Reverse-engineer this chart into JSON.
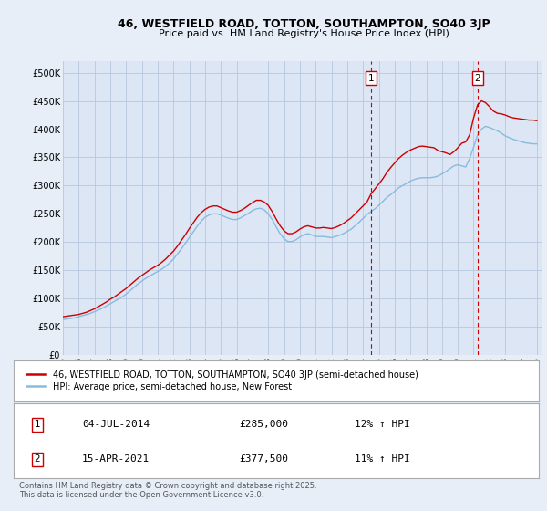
{
  "title_line1": "46, WESTFIELD ROAD, TOTTON, SOUTHAMPTON, SO40 3JP",
  "title_line2": "Price paid vs. HM Land Registry's House Price Index (HPI)",
  "xlim_start": 1995.0,
  "xlim_end": 2025.3,
  "ylim_min": 0,
  "ylim_max": 520000,
  "yticks": [
    0,
    50000,
    100000,
    150000,
    200000,
    250000,
    300000,
    350000,
    400000,
    450000,
    500000
  ],
  "ytick_labels": [
    "£0",
    "£50K",
    "£100K",
    "£150K",
    "£200K",
    "£250K",
    "£300K",
    "£350K",
    "£400K",
    "£450K",
    "£500K"
  ],
  "xtick_years": [
    1995,
    1996,
    1997,
    1998,
    1999,
    2000,
    2001,
    2002,
    2003,
    2004,
    2005,
    2006,
    2007,
    2008,
    2009,
    2010,
    2011,
    2012,
    2013,
    2014,
    2015,
    2016,
    2017,
    2018,
    2019,
    2020,
    2021,
    2022,
    2023,
    2024,
    2025
  ],
  "bg_color": "#e8eef8",
  "plot_bg_color": "#dce6f5",
  "grid_color": "#b8c8dc",
  "red_line_color": "#cc0000",
  "blue_line_color": "#88bbdd",
  "marker1_x": 2014.5,
  "marker1_label": "1",
  "marker1_price": "£285,000",
  "marker1_date": "04-JUL-2014",
  "marker1_hpi": "12% ↑ HPI",
  "marker2_x": 2021.25,
  "marker2_label": "2",
  "marker2_price": "£377,500",
  "marker2_date": "15-APR-2021",
  "marker2_hpi": "11% ↑ HPI",
  "legend_label1": "46, WESTFIELD ROAD, TOTTON, SOUTHAMPTON, SO40 3JP (semi-detached house)",
  "legend_label2": "HPI: Average price, semi-detached house, New Forest",
  "footer_text": "Contains HM Land Registry data © Crown copyright and database right 2025.\nThis data is licensed under the Open Government Licence v3.0.",
  "hpi_series_x": [
    1995.0,
    1995.25,
    1995.5,
    1995.75,
    1996.0,
    1996.25,
    1996.5,
    1996.75,
    1997.0,
    1997.25,
    1997.5,
    1997.75,
    1998.0,
    1998.25,
    1998.5,
    1998.75,
    1999.0,
    1999.25,
    1999.5,
    1999.75,
    2000.0,
    2000.25,
    2000.5,
    2000.75,
    2001.0,
    2001.25,
    2001.5,
    2001.75,
    2002.0,
    2002.25,
    2002.5,
    2002.75,
    2003.0,
    2003.25,
    2003.5,
    2003.75,
    2004.0,
    2004.25,
    2004.5,
    2004.75,
    2005.0,
    2005.25,
    2005.5,
    2005.75,
    2006.0,
    2006.25,
    2006.5,
    2006.75,
    2007.0,
    2007.25,
    2007.5,
    2007.75,
    2008.0,
    2008.25,
    2008.5,
    2008.75,
    2009.0,
    2009.25,
    2009.5,
    2009.75,
    2010.0,
    2010.25,
    2010.5,
    2010.75,
    2011.0,
    2011.25,
    2011.5,
    2011.75,
    2012.0,
    2012.25,
    2012.5,
    2012.75,
    2013.0,
    2013.25,
    2013.5,
    2013.75,
    2014.0,
    2014.25,
    2014.5,
    2014.75,
    2015.0,
    2015.25,
    2015.5,
    2015.75,
    2016.0,
    2016.25,
    2016.5,
    2016.75,
    2017.0,
    2017.25,
    2017.5,
    2017.75,
    2018.0,
    2018.25,
    2018.5,
    2018.75,
    2019.0,
    2019.25,
    2019.5,
    2019.75,
    2020.0,
    2020.25,
    2020.5,
    2020.75,
    2021.0,
    2021.25,
    2021.5,
    2021.75,
    2022.0,
    2022.25,
    2022.5,
    2022.75,
    2023.0,
    2023.25,
    2023.5,
    2023.75,
    2024.0,
    2024.25,
    2024.5,
    2024.75,
    2025.0
  ],
  "hpi_series_y": [
    63000,
    64000,
    65000,
    66000,
    68000,
    70000,
    72000,
    74000,
    77000,
    80000,
    83000,
    87000,
    91000,
    95000,
    99000,
    103000,
    108000,
    114000,
    120000,
    126000,
    131000,
    136000,
    140000,
    144000,
    148000,
    152000,
    157000,
    163000,
    170000,
    179000,
    188000,
    198000,
    208000,
    218000,
    228000,
    237000,
    244000,
    248000,
    250000,
    250000,
    248000,
    245000,
    242000,
    240000,
    240000,
    243000,
    247000,
    251000,
    256000,
    259000,
    260000,
    257000,
    250000,
    240000,
    227000,
    215000,
    206000,
    201000,
    201000,
    204000,
    209000,
    213000,
    215000,
    213000,
    210000,
    210000,
    210000,
    209000,
    208000,
    210000,
    212000,
    215000,
    219000,
    223000,
    229000,
    235000,
    242000,
    249000,
    254000,
    259000,
    265000,
    272000,
    279000,
    284000,
    290000,
    296000,
    300000,
    304000,
    308000,
    311000,
    313000,
    314000,
    314000,
    314000,
    315000,
    317000,
    321000,
    325000,
    330000,
    335000,
    337000,
    335000,
    333000,
    348000,
    368000,
    390000,
    400000,
    405000,
    403000,
    400000,
    397000,
    393000,
    388000,
    385000,
    382000,
    380000,
    378000,
    376000,
    375000,
    374000,
    374000
  ],
  "price_series_x": [
    1995.0,
    1995.25,
    1995.5,
    1995.75,
    1996.0,
    1996.25,
    1996.5,
    1996.75,
    1997.0,
    1997.25,
    1997.5,
    1997.75,
    1998.0,
    1998.25,
    1998.5,
    1998.75,
    1999.0,
    1999.25,
    1999.5,
    1999.75,
    2000.0,
    2000.25,
    2000.5,
    2000.75,
    2001.0,
    2001.25,
    2001.5,
    2001.75,
    2002.0,
    2002.25,
    2002.5,
    2002.75,
    2003.0,
    2003.25,
    2003.5,
    2003.75,
    2004.0,
    2004.25,
    2004.5,
    2004.75,
    2005.0,
    2005.25,
    2005.5,
    2005.75,
    2006.0,
    2006.25,
    2006.5,
    2006.75,
    2007.0,
    2007.25,
    2007.5,
    2007.75,
    2008.0,
    2008.25,
    2008.5,
    2008.75,
    2009.0,
    2009.25,
    2009.5,
    2009.75,
    2010.0,
    2010.25,
    2010.5,
    2010.75,
    2011.0,
    2011.25,
    2011.5,
    2011.75,
    2012.0,
    2012.25,
    2012.5,
    2012.75,
    2013.0,
    2013.25,
    2013.5,
    2013.75,
    2014.0,
    2014.25,
    2014.5,
    2014.75,
    2015.0,
    2015.25,
    2015.5,
    2015.75,
    2016.0,
    2016.25,
    2016.5,
    2016.75,
    2017.0,
    2017.25,
    2017.5,
    2017.75,
    2018.0,
    2018.25,
    2018.5,
    2018.75,
    2019.0,
    2019.25,
    2019.5,
    2019.75,
    2020.0,
    2020.25,
    2020.5,
    2020.75,
    2021.0,
    2021.25,
    2021.5,
    2021.75,
    2022.0,
    2022.25,
    2022.5,
    2022.75,
    2023.0,
    2023.25,
    2023.5,
    2023.75,
    2024.0,
    2024.25,
    2024.5,
    2024.75,
    2025.0
  ],
  "price_series_y": [
    68000,
    69000,
    70000,
    71000,
    72000,
    74000,
    76000,
    79000,
    82000,
    86000,
    90000,
    94000,
    99000,
    103000,
    108000,
    113000,
    118000,
    124000,
    130000,
    136000,
    141000,
    146000,
    151000,
    155000,
    159000,
    164000,
    170000,
    177000,
    184000,
    193000,
    203000,
    213000,
    224000,
    234000,
    244000,
    252000,
    258000,
    262000,
    264000,
    264000,
    261000,
    258000,
    255000,
    253000,
    253000,
    256000,
    260000,
    265000,
    270000,
    274000,
    274000,
    271000,
    265000,
    254000,
    241000,
    229000,
    220000,
    215000,
    215000,
    218000,
    223000,
    227000,
    229000,
    227000,
    225000,
    225000,
    226000,
    225000,
    224000,
    226000,
    229000,
    233000,
    238000,
    243000,
    250000,
    257000,
    264000,
    271000,
    285000,
    294000,
    303000,
    312000,
    323000,
    332000,
    340000,
    348000,
    354000,
    359000,
    363000,
    366000,
    369000,
    370000,
    369000,
    368000,
    367000,
    362000,
    360000,
    358000,
    355000,
    360000,
    367000,
    375000,
    377500,
    390000,
    420000,
    443000,
    450000,
    447000,
    440000,
    432000,
    428000,
    427000,
    425000,
    422000,
    420000,
    419000,
    418000,
    417000,
    416000,
    416000,
    415000
  ]
}
